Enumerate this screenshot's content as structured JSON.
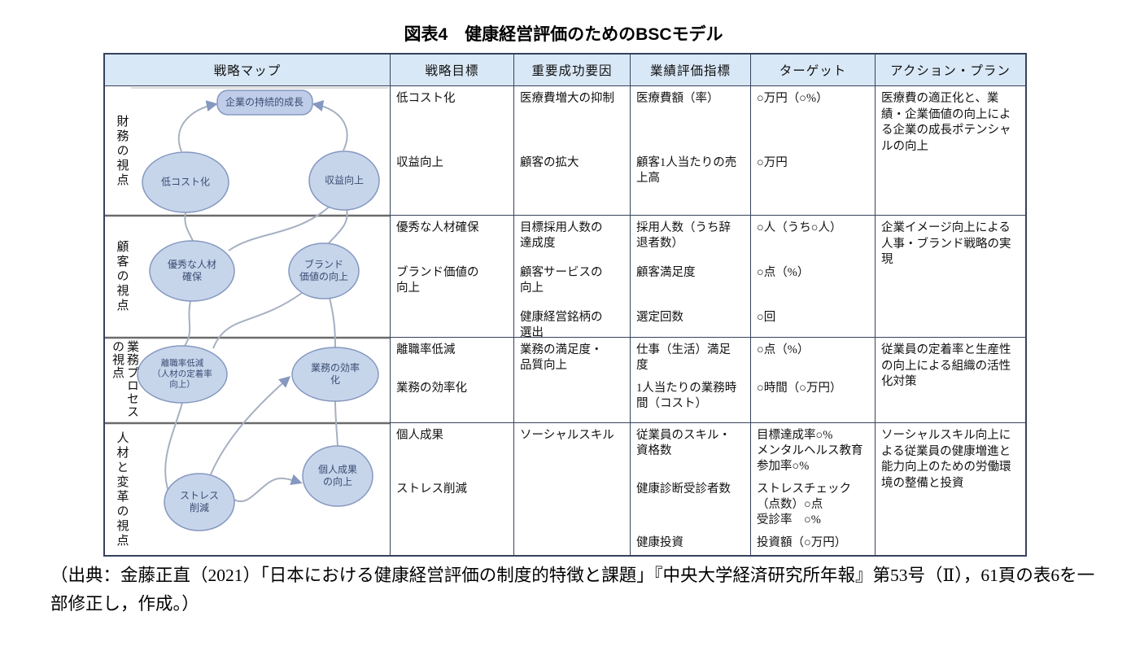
{
  "title": "図表4　健康経営評価のためのBSCモデル",
  "table": {
    "headers": {
      "strategy_map": "戦略マップ",
      "strategy_goal": "戦略目標",
      "success_factor": "重要成功要因",
      "kpi": "業績評価指標",
      "target": "ターゲット",
      "action_plan": "アクション・プラン"
    },
    "rows": [
      {
        "perspective": "財務の視点",
        "goals": [
          "低コスト化",
          "収益向上"
        ],
        "factors": [
          "医療費増大の抑制",
          "顧客の拡大"
        ],
        "indicators": [
          "医療費額（率）",
          "顧客1人当たりの売\n上高"
        ],
        "targets": [
          "○万円（○%）",
          "○万円"
        ],
        "action": "医療費の適正化と、業績・企業価値の向上による企業の成長ポテンシャルの向上"
      },
      {
        "perspective": "顧客の視点",
        "goals": [
          "優秀な人材確保",
          "ブランド価値の\n向上"
        ],
        "factors": [
          "目標採用人数の\n達成度",
          "顧客サービスの\n向上",
          "健康経営銘柄の\n選出"
        ],
        "indicators": [
          "採用人数（うち辞\n退者数）",
          "顧客満足度",
          "選定回数"
        ],
        "targets": [
          "○人（うち○人）",
          "○点（%）",
          "○回"
        ],
        "action": "企業イメージ向上による人事・ブランド戦略の実現"
      },
      {
        "perspective": "業務プロセスの視点",
        "goals": [
          "離職率低減",
          "業務の効率化"
        ],
        "factors": [
          "業務の満足度・\n品質向上"
        ],
        "indicators": [
          "仕事（生活）満足\n度",
          "1人当たりの業務時\n間（コスト）"
        ],
        "targets": [
          "○点（%）",
          "○時間（○万円）"
        ],
        "action": "従業員の定着率と生産性の向上による組織の活性化対策"
      },
      {
        "perspective": "人材と変革の視点",
        "goals": [
          "個人成果",
          "ストレス削減"
        ],
        "factors": [
          "ソーシャルスキル"
        ],
        "indicators": [
          "従業員のスキル・\n資格数",
          "健康診断受診者数",
          "健康投資"
        ],
        "targets": [
          "目標達成率○%\nメンタルヘルス教育\n参加率○%",
          "ストレスチェック\n（点数）○点\n受診率　○%",
          "投資額（○万円）"
        ],
        "action": "ソーシャルスキル向上による従業員の健康増進と能力向上のための労働環境の整備と投資"
      }
    ]
  },
  "strategy_map": {
    "nodes": {
      "growth": "企業の持続的成長",
      "low_cost": "低コスト化",
      "profit": "収益向上",
      "talent": "優秀な人材\n確保",
      "brand": "ブランド\n価値の向上",
      "turnover": "離職率低減\n（人材の定着率\n向上）",
      "efficiency": "業務の効率化",
      "stress": "ストレス\n削減",
      "personal": "個人成果\nの向上"
    }
  },
  "citation": "（出典：金藤正直（2021）「日本における健康経営評価の制度的特徴と課題」『中央大学経済研究所年報』第53号（Ⅱ），61頁の表6を一部修正し，作成。）"
}
